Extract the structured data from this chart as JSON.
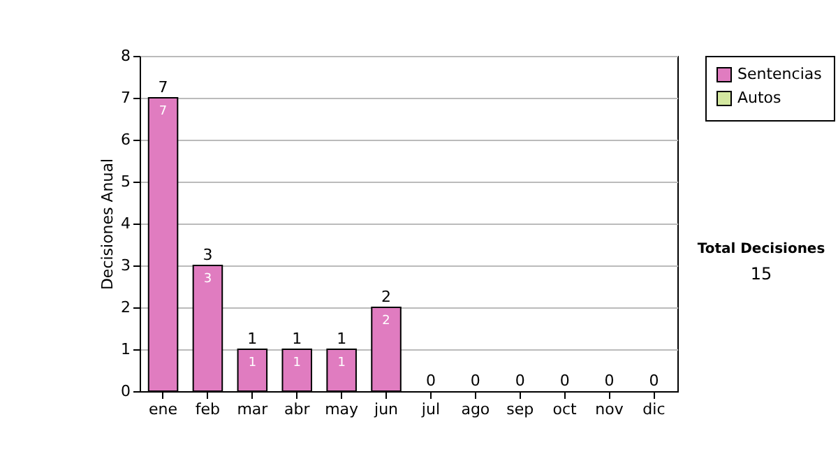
{
  "chart_data": {
    "type": "bar",
    "stacked": true,
    "ylabel": "Decisiones Anual",
    "categories": [
      "ene",
      "feb",
      "mar",
      "abr",
      "may",
      "jun",
      "jul",
      "ago",
      "sep",
      "oct",
      "nov",
      "dic"
    ],
    "series": [
      {
        "name": "Sentencias",
        "color": "#e07cc0",
        "values": [
          7,
          3,
          1,
          1,
          1,
          2,
          0,
          0,
          0,
          0,
          0,
          0
        ],
        "value_labels": [
          "7",
          "3",
          "1",
          "1",
          "1",
          "2",
          null,
          null,
          null,
          null,
          null,
          null
        ]
      },
      {
        "name": "Autos",
        "color": "#d4e8a0",
        "values": [
          0,
          0,
          0,
          0,
          0,
          0,
          0,
          0,
          0,
          0,
          0,
          0
        ],
        "value_labels": [
          null,
          null,
          null,
          null,
          null,
          null,
          null,
          null,
          null,
          null,
          null,
          null
        ]
      }
    ],
    "totals": [
      "7",
      "3",
      "1",
      "1",
      "1",
      "2",
      "0",
      "0",
      "0",
      "0",
      "0",
      "0"
    ],
    "ylim": [
      0,
      8
    ],
    "yticks": [
      0,
      1,
      2,
      3,
      4,
      5,
      6,
      7,
      8
    ],
    "grid": "y",
    "legend": "right",
    "annotations": [
      "Total Decisiones",
      "15"
    ]
  }
}
